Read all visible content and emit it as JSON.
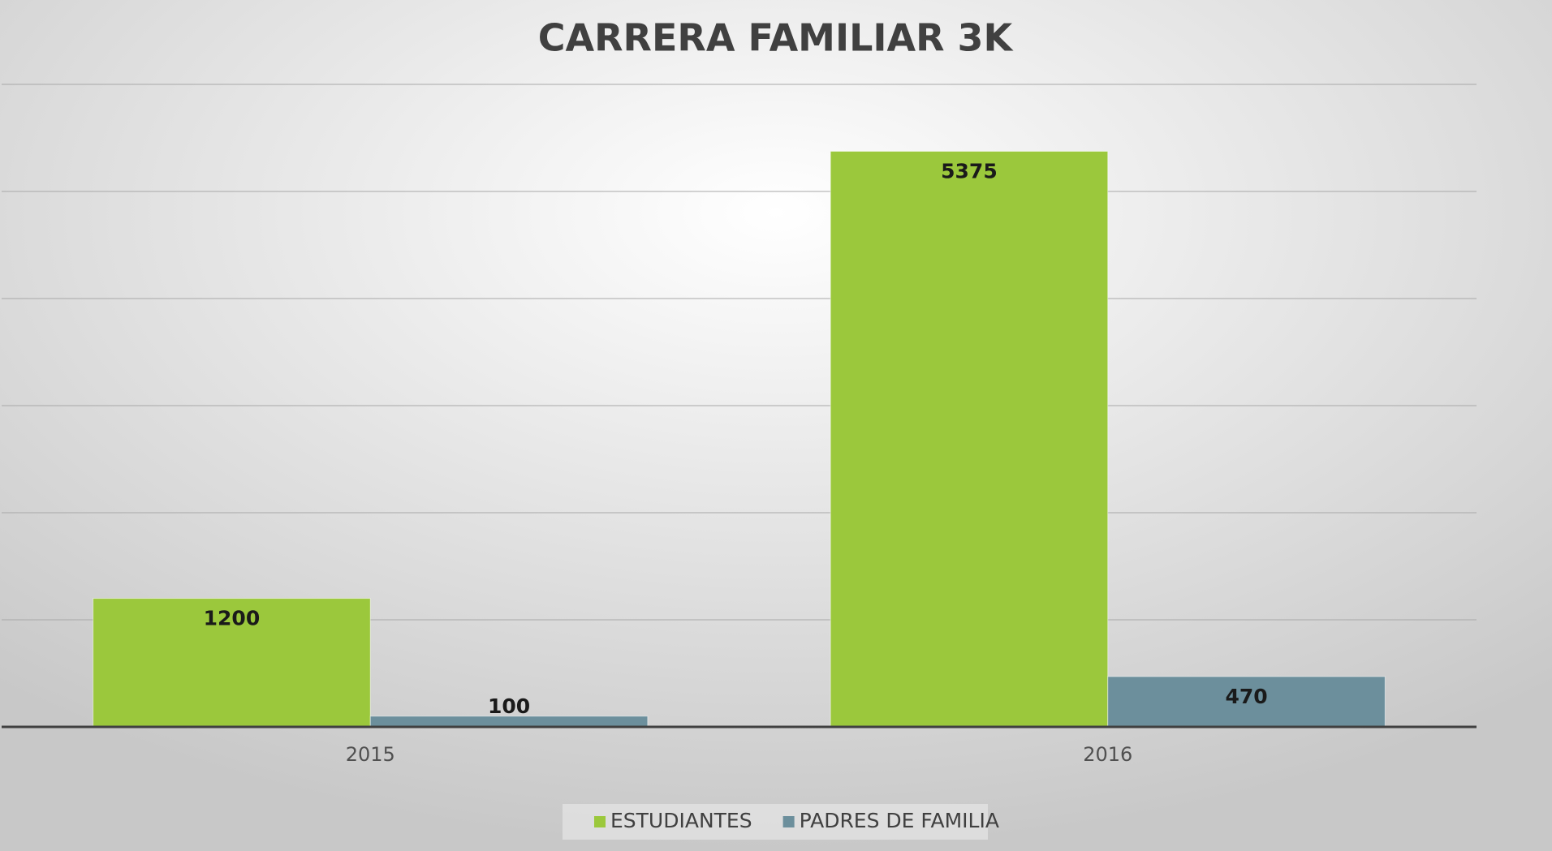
{
  "chart_data": {
    "type": "bar",
    "title": "CARRERA FAMILIAR 3K",
    "categories": [
      "2015",
      "2016"
    ],
    "series": [
      {
        "name": "ESTUDIANTES",
        "color": "#9bc83c",
        "values": [
          1200,
          5375
        ]
      },
      {
        "name": "PADRES DE FAMILIA",
        "color": "#6c8f9c",
        "values": [
          100,
          470
        ]
      }
    ],
    "ylim": [
      0,
      6000
    ],
    "yticks": [
      0,
      1000,
      2000,
      3000,
      4000,
      5000,
      6000
    ],
    "grid": true,
    "legend": "bottom"
  }
}
